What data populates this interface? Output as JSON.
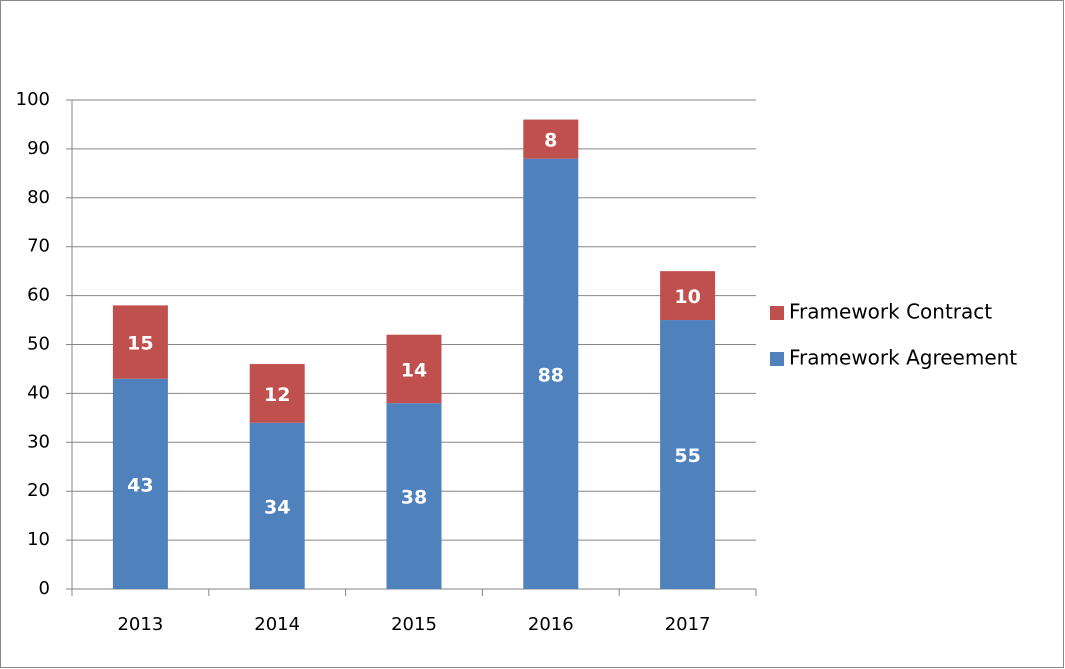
{
  "chart_data": {
    "type": "bar",
    "stacked": true,
    "categories": [
      "2013",
      "2014",
      "2015",
      "2016",
      "2017"
    ],
    "series": [
      {
        "name": "Framework Agreement",
        "color": "#4f81bd",
        "values": [
          43,
          34,
          38,
          88,
          55
        ]
      },
      {
        "name": "Framework Contract",
        "color": "#c0504d",
        "values": [
          15,
          12,
          14,
          8,
          10
        ]
      }
    ],
    "ylim": [
      0,
      100
    ],
    "yticks": [
      0,
      10,
      20,
      30,
      40,
      50,
      60,
      70,
      80,
      90,
      100
    ],
    "grid": true,
    "legend": "right"
  }
}
